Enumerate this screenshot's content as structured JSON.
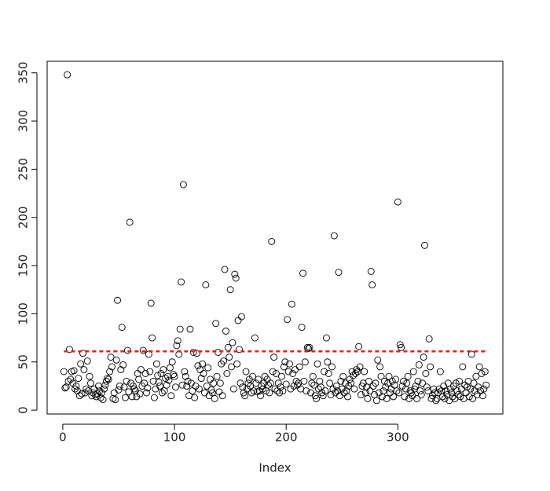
{
  "chart_data": {
    "type": "scatter",
    "x_label": "Index",
    "color": "#000000",
    "xlim": [
      -14,
      394
    ],
    "xticks": [
      0,
      100,
      200,
      300
    ],
    "ylim": [
      -4,
      362
    ],
    "yticks": [
      0,
      50,
      100,
      150,
      200,
      250,
      300,
      350
    ],
    "hline": {
      "value": 61,
      "color": "#e0201b",
      "dashed": true
    },
    "values": [
      40,
      23,
      24,
      348,
      30,
      63,
      32,
      40,
      28,
      41,
      22,
      25,
      20,
      33,
      15,
      48,
      17,
      59,
      42,
      18,
      22,
      51,
      20,
      35,
      28,
      15,
      18,
      22,
      16,
      14,
      17,
      25,
      20,
      13,
      18,
      11,
      22,
      26,
      30,
      33,
      32,
      40,
      55,
      45,
      12,
      18,
      11,
      52,
      114,
      21,
      25,
      42,
      86,
      47,
      24,
      13,
      30,
      62,
      19,
      195,
      28,
      14,
      25,
      22,
      20,
      14,
      38,
      32,
      17,
      42,
      25,
      62,
      28,
      38,
      18,
      23,
      58,
      40,
      111,
      75,
      30,
      13,
      22,
      48,
      36,
      29,
      25,
      38,
      18,
      42,
      20,
      33,
      26,
      35,
      31,
      44,
      15,
      50,
      37,
      35,
      24,
      67,
      72,
      58,
      84,
      133,
      26,
      234,
      40,
      35,
      25,
      30,
      15,
      84,
      28,
      20,
      60,
      13,
      25,
      59,
      46,
      22,
      42,
      33,
      48,
      38,
      18,
      130,
      25,
      44,
      15,
      32,
      21,
      18,
      28,
      12,
      90,
      35,
      60,
      19,
      28,
      48,
      15,
      51,
      146,
      82,
      38,
      65,
      55,
      125,
      45,
      70,
      22,
      141,
      137,
      48,
      93,
      63,
      28,
      97,
      24,
      18,
      15,
      40,
      22,
      28,
      32,
      25,
      18,
      35,
      20,
      75,
      28,
      19,
      32,
      20,
      15,
      25,
      22,
      28,
      35,
      20,
      32,
      26,
      18,
      28,
      175,
      40,
      55,
      22,
      38,
      20,
      28,
      18,
      24,
      35,
      20,
      45,
      50,
      27,
      94,
      40,
      48,
      22,
      110,
      38,
      25,
      42,
      30,
      26,
      28,
      45,
      22,
      86,
      142,
      30,
      50,
      20,
      65,
      64,
      65,
      18,
      28,
      35,
      26,
      15,
      12,
      48,
      22,
      30,
      24,
      18,
      15,
      40,
      20,
      75,
      50,
      38,
      28,
      16,
      45,
      22,
      181,
      18,
      25,
      20,
      143,
      15,
      30,
      22,
      35,
      18,
      28,
      20,
      14,
      25,
      32,
      28,
      40,
      36,
      22,
      38,
      42,
      40,
      66,
      45,
      16,
      25,
      28,
      40,
      18,
      24,
      12,
      30,
      20,
      144,
      130,
      25,
      16,
      28,
      10,
      52,
      18,
      45,
      35,
      14,
      20,
      30,
      24,
      12,
      28,
      35,
      18,
      22,
      30,
      14,
      26,
      32,
      20,
      216,
      18,
      68,
      65,
      25,
      30,
      14,
      22,
      28,
      35,
      12,
      20,
      18,
      15,
      40,
      22,
      25,
      12,
      30,
      47,
      20,
      16,
      28,
      55,
      171,
      38,
      24,
      20,
      74,
      45,
      12,
      15,
      22,
      18,
      10,
      12,
      18,
      22,
      40,
      20,
      14,
      25,
      12,
      20,
      16,
      28,
      10,
      22,
      18,
      14,
      25,
      12,
      28,
      20,
      16,
      30,
      14,
      22,
      45,
      12,
      26,
      18,
      24,
      30,
      14,
      22,
      58,
      12,
      28,
      20,
      35,
      16,
      24,
      45,
      20,
      38,
      15,
      22,
      40,
      26
    ]
  }
}
